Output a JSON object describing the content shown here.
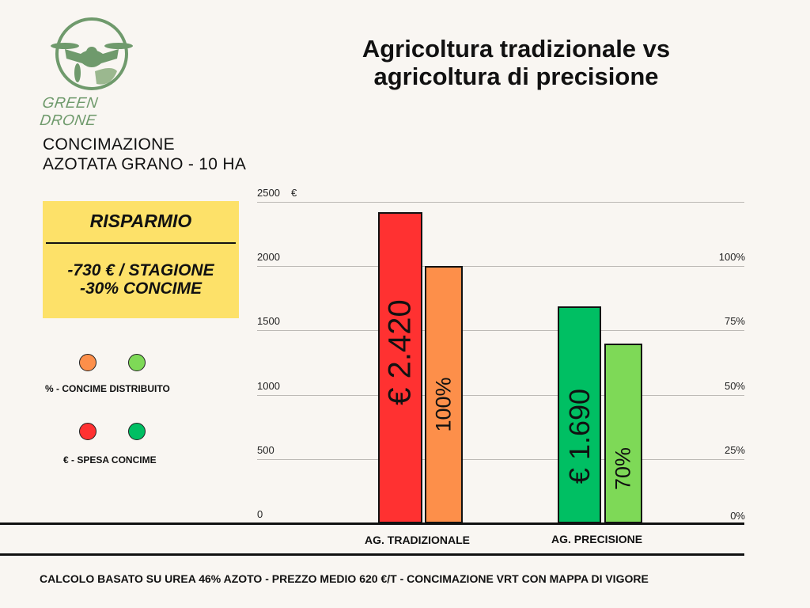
{
  "title": "Agricoltura tradizionale vs agricoltura di precisione",
  "title_lines": [
    "Agricoltura tradizionale vs",
    "agricoltura di precisione"
  ],
  "logo": {
    "text": "GREEN DRONE",
    "color": "#6f9a6c"
  },
  "subtitle_lines": [
    "CONCIMAZIONE",
    "AZOTATA GRANO - 10 HA"
  ],
  "savings_box": {
    "heading": "RISPARMIO",
    "line1": "-730 € / STAGIONE",
    "line2": "-30% CONCIME",
    "color": "#fde169"
  },
  "legend": [
    {
      "label": "% -  CONCIME DISTRIBUITO",
      "colors": [
        "#fd8f4a",
        "#7ed957"
      ]
    },
    {
      "label": "€ - SPESA CONCIME",
      "colors": [
        "#ff3131",
        "#00bf63"
      ]
    }
  ],
  "footer": "CALCOLO BASATO SU UREA 46% AZOTO - PREZZO MEDIO 620 €/T - CONCIMAZIONE VRT CON MAPPA DI VIGORE",
  "chart_data": {
    "type": "bar",
    "categories": [
      "AG. TRADIZIONALE",
      "AG. PRECISIONE"
    ],
    "left_axis": {
      "unit": "€",
      "ylim": [
        0,
        2500
      ],
      "ticks": [
        "0",
        "500",
        "1000",
        "1500",
        "2000",
        "2500"
      ]
    },
    "right_axis": {
      "ylim": [
        0,
        100
      ],
      "ticks": [
        "0%",
        "25%",
        "50%",
        "75%",
        "100%"
      ]
    },
    "grid": true,
    "series": [
      {
        "axis": "left",
        "values": [
          2420,
          1690
        ],
        "labels": [
          "€ 2.420",
          "€ 1.690"
        ],
        "colors": [
          "#ff3131",
          "#00bf63"
        ]
      },
      {
        "axis": "right",
        "values": [
          100,
          70
        ],
        "labels": [
          "100%",
          "70%"
        ],
        "colors": [
          "#fd8f4a",
          "#7ed957"
        ]
      }
    ]
  }
}
